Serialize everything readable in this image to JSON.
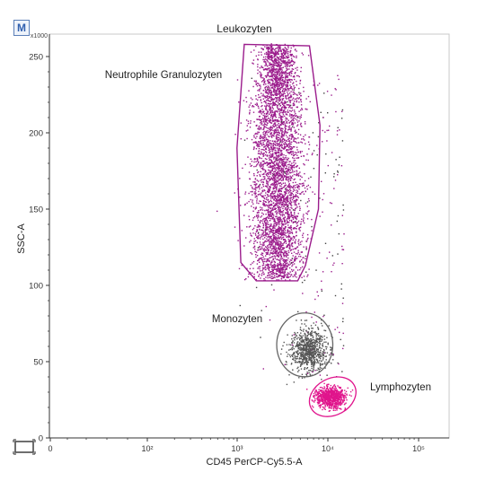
{
  "badge": "M",
  "chart_data": {
    "type": "scatter",
    "xlabel": "CD45 PerCP-Cy5.5-A",
    "ylabel": "SSC-A",
    "y_multiplier": "x1000",
    "x_scale": "log",
    "x_ticks": [
      "0",
      "10²",
      "10³",
      "10⁴",
      "10⁵"
    ],
    "y_ticks": [
      "0",
      "50",
      "100",
      "150",
      "200",
      "250"
    ],
    "ylim": [
      0,
      262
    ],
    "populations": [
      {
        "name": "Leukozyten",
        "label_role": "gate",
        "color": "#9b1c8c",
        "center_x": 2700,
        "center_y": 180,
        "count": 4200,
        "gate": [
          [
            1180,
            258
          ],
          [
            6200,
            257
          ],
          [
            8100,
            205
          ],
          [
            7800,
            150
          ],
          [
            5600,
            113
          ],
          [
            4600,
            103
          ],
          [
            1600,
            103
          ],
          [
            1080,
            115
          ],
          [
            980,
            190
          ]
        ]
      },
      {
        "name": "Neutrophile Granulozyten",
        "label_role": "population",
        "color": "#9b1c8c"
      },
      {
        "name": "Monozyten",
        "color": "#555555",
        "center_x": 5900,
        "center_y": 58,
        "count": 750,
        "gate_ellipse": {
          "cx": 5500,
          "cy": 61,
          "rx_decades": 0.31,
          "ry": 22
        }
      },
      {
        "name": "Lymphozyten",
        "color": "#e0148c",
        "center_x": 10500,
        "center_y": 27,
        "count": 800,
        "gate_ellipse": {
          "cx": 11200,
          "cy": 27,
          "rx_decades": 0.27,
          "ry": 16,
          "rotate": -28
        }
      }
    ],
    "grid": false,
    "legend": "none"
  }
}
